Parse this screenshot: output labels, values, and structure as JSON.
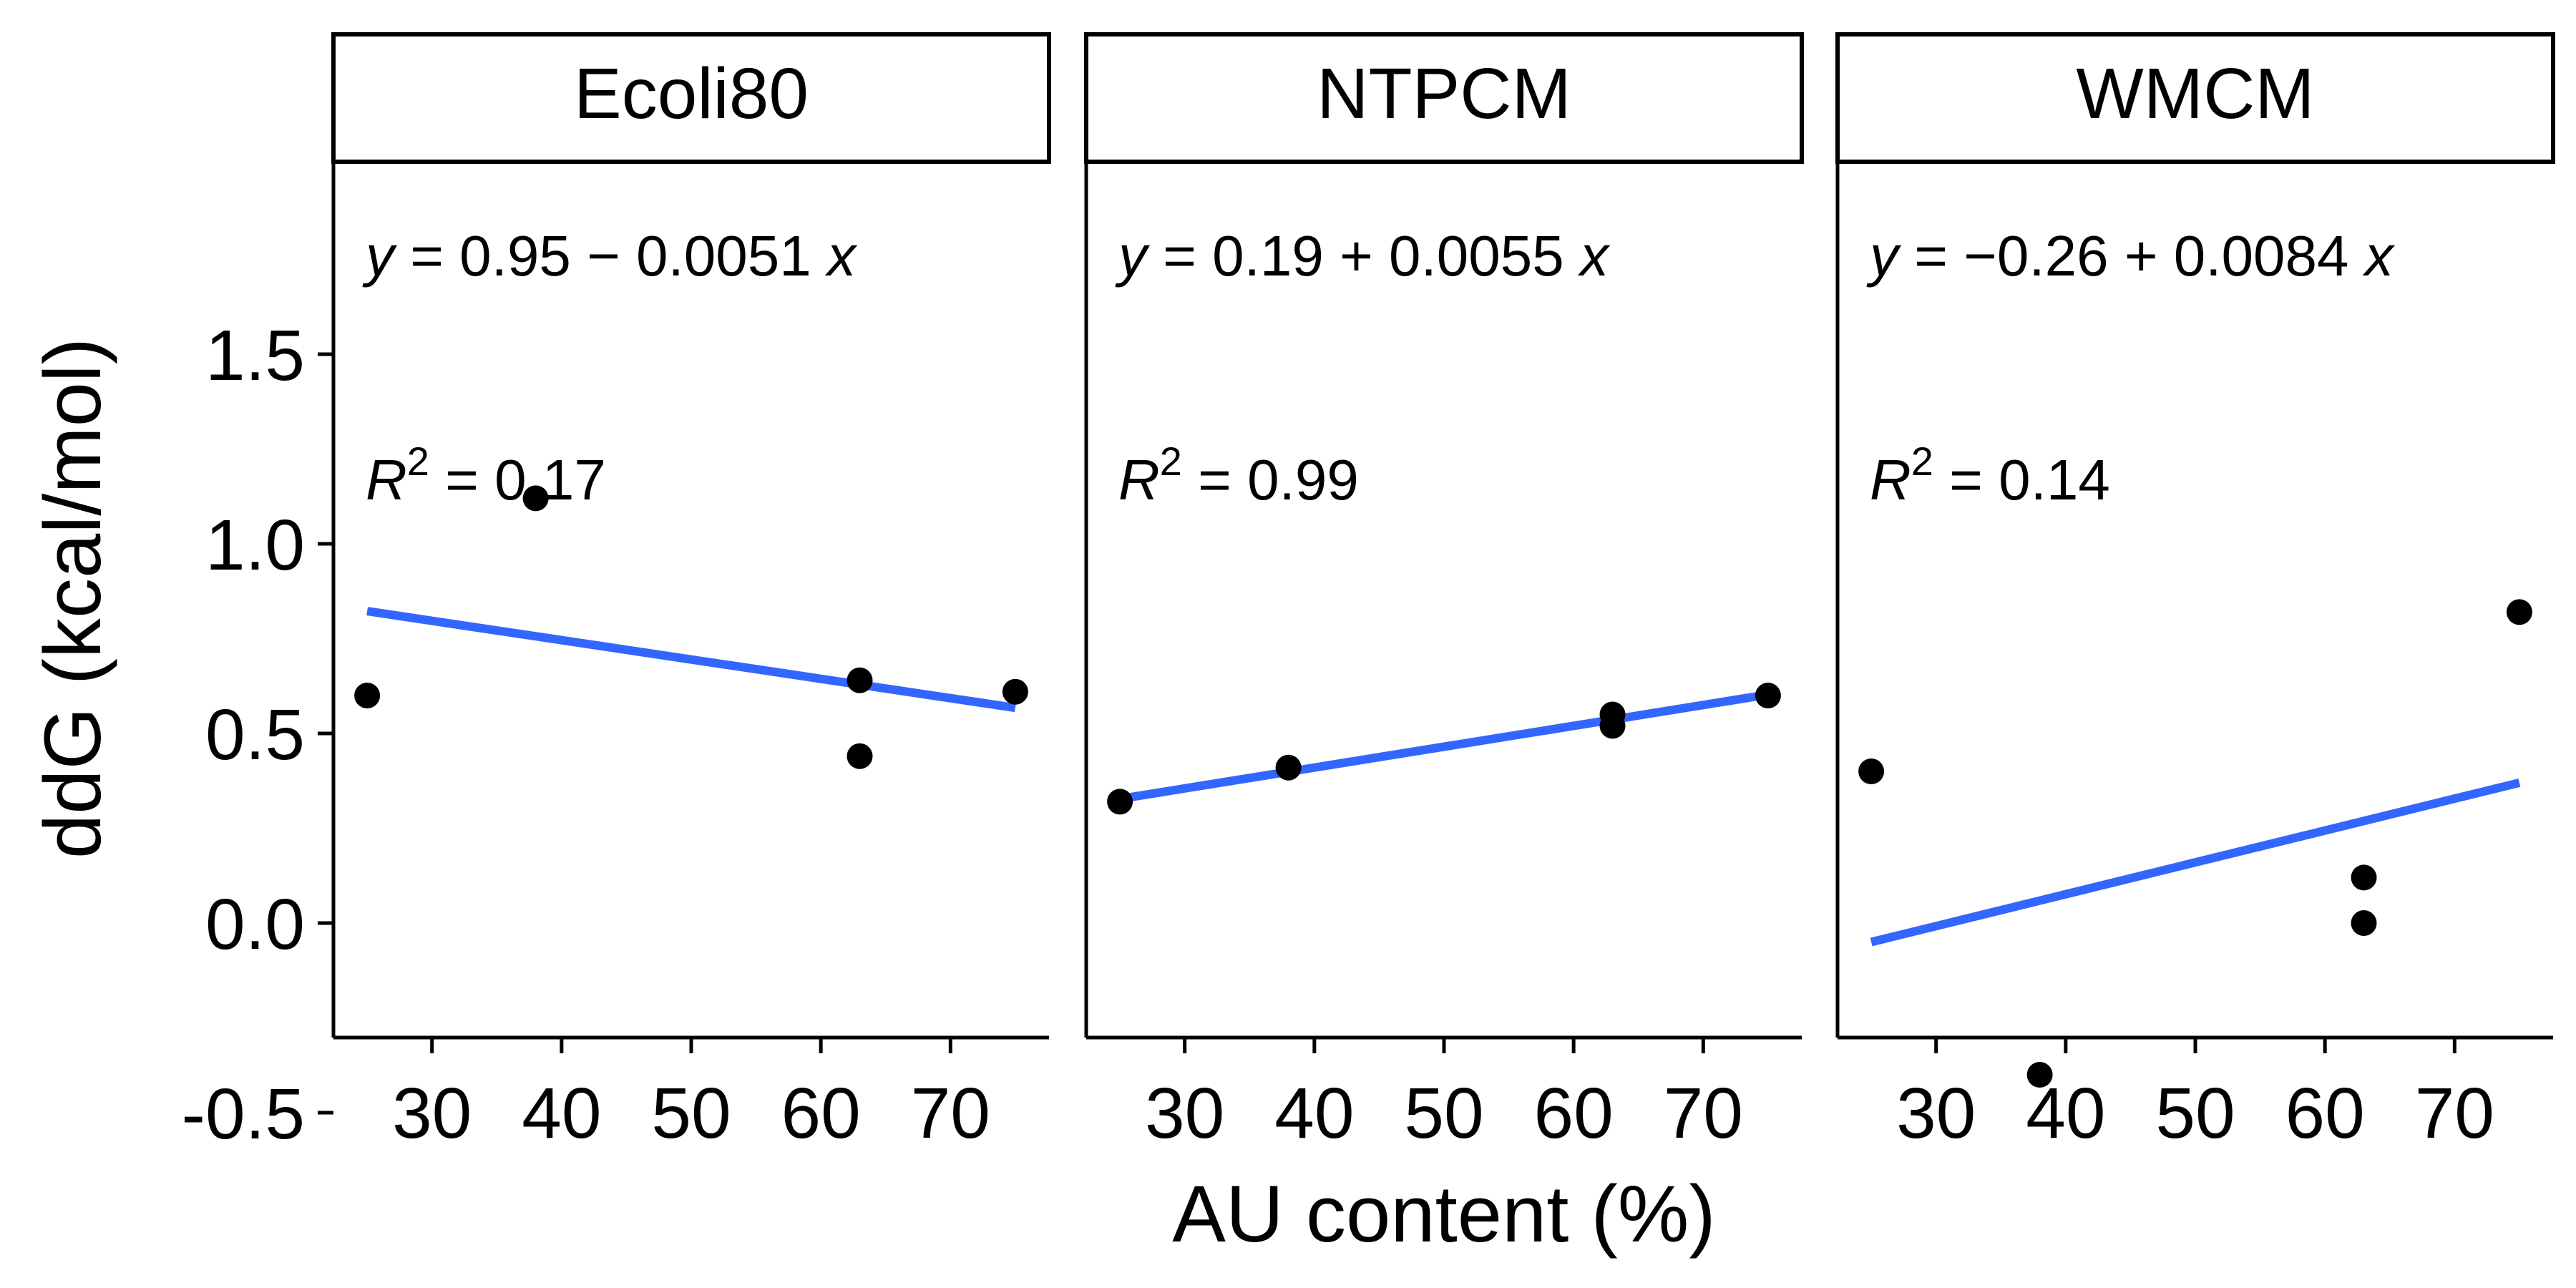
{
  "chart_data": {
    "type": "scatter",
    "xlabel": "AU content (%)",
    "ylabel": "ddG (kcal/mol)",
    "xlim": [
      22.4,
      77.6
    ],
    "ylim": [
      -0.8,
      1.5
    ],
    "xticks": [
      "30",
      "40",
      "50",
      "60",
      "70"
    ],
    "xtick_values": [
      30,
      40,
      50,
      60,
      70
    ],
    "yticks": [
      "-0.5",
      "0.0",
      "0.5",
      "1.0",
      "1.5"
    ],
    "ytick_values": [
      -0.5,
      0.0,
      0.5,
      1.0,
      1.5
    ],
    "line_color": "#3366FF",
    "point_color": "#000000",
    "grid": false,
    "panels": [
      {
        "name": "Ecoli80",
        "points": [
          [
            25,
            0.6
          ],
          [
            38,
            1.12
          ],
          [
            63,
            0.64
          ],
          [
            63,
            0.44
          ],
          [
            75,
            0.61
          ]
        ],
        "fit": {
          "intercept": 0.95,
          "slope": -0.0051
        },
        "eq": {
          "y": "y",
          "eq": " = 0.95 − 0.0051 ",
          "x": "x"
        },
        "r2": {
          "r": "R",
          "sup": "2",
          "val": " = 0.17"
        }
      },
      {
        "name": "NTPCM",
        "points": [
          [
            25,
            0.32
          ],
          [
            38,
            0.41
          ],
          [
            63,
            0.55
          ],
          [
            63,
            0.52
          ],
          [
            75,
            0.6
          ]
        ],
        "fit": {
          "intercept": 0.19,
          "slope": 0.0055
        },
        "eq": {
          "y": "y",
          "eq": " = 0.19 + 0.0055 ",
          "x": "x"
        },
        "r2": {
          "r": "R",
          "sup": "2",
          "val": " = 0.99"
        }
      },
      {
        "name": "WMCM",
        "points": [
          [
            25,
            0.4
          ],
          [
            38,
            -0.4
          ],
          [
            63,
            0.12
          ],
          [
            63,
            0.0
          ],
          [
            75,
            0.82
          ]
        ],
        "fit": {
          "intercept": -0.26,
          "slope": 0.0084
        },
        "eq": {
          "y": "y",
          "eq": " = −0.26 + 0.0084 ",
          "x": "x"
        },
        "r2": {
          "r": "R",
          "sup": "2",
          "val": " = 0.14"
        }
      }
    ]
  }
}
